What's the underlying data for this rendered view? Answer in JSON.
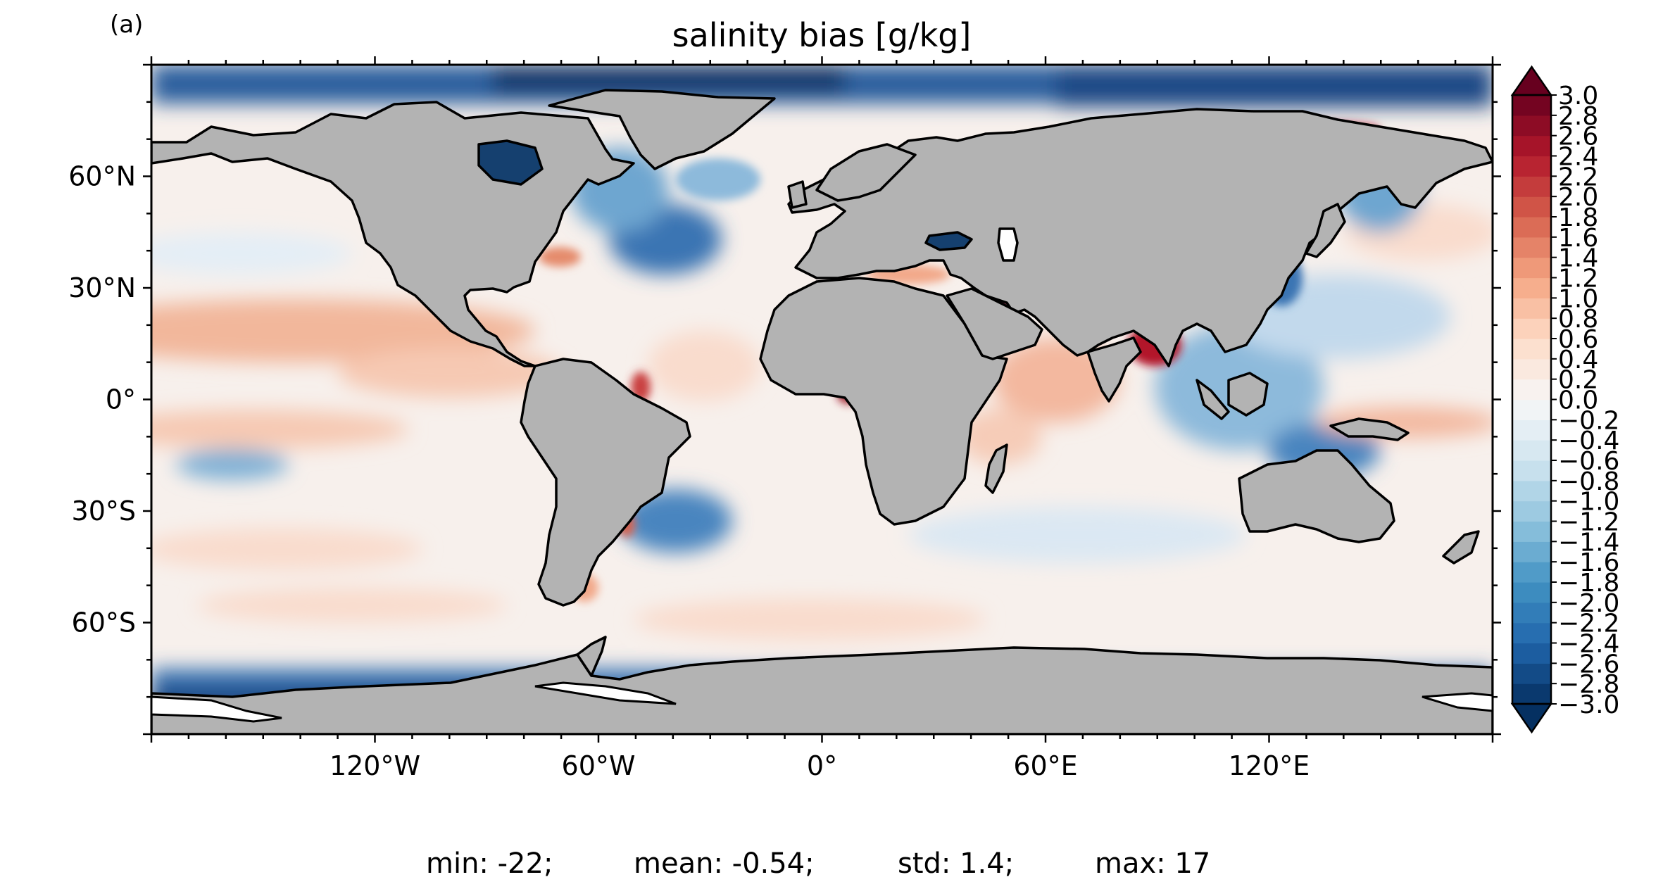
{
  "panel_label": "(a)",
  "title": "salinity bias [g/kg]",
  "stats": {
    "min": "min: -22;",
    "mean": "mean: -0.54;",
    "std": "std: 1.4;",
    "max": "max: 17"
  },
  "chart_data": {
    "type": "heatmap",
    "projection": "plate carree (equirectangular)",
    "title": "salinity bias [g/kg]",
    "xlim": [
      -180,
      180
    ],
    "ylim": [
      -90,
      90
    ],
    "x_ticks": [
      {
        "value": -120,
        "label": "120°W"
      },
      {
        "value": -60,
        "label": "60°W"
      },
      {
        "value": 0,
        "label": "0°"
      },
      {
        "value": 60,
        "label": "60°E"
      },
      {
        "value": 120,
        "label": "120°E"
      }
    ],
    "y_ticks": [
      {
        "value": 60,
        "label": "60°N"
      },
      {
        "value": 30,
        "label": "30°N"
      },
      {
        "value": 0,
        "label": "0°"
      },
      {
        "value": -30,
        "label": "30°S"
      },
      {
        "value": -60,
        "label": "60°S"
      }
    ],
    "land_color": "#b3b3b3",
    "coastline_color": "#000000",
    "colorbar": {
      "colormap": "RdBu_r",
      "vmin": -3.0,
      "vmax": 3.0,
      "step": 0.2,
      "extend": "both",
      "tick_labels": [
        "3.0",
        "2.8",
        "2.6",
        "2.4",
        "2.2",
        "2.0",
        "1.8",
        "1.6",
        "1.4",
        "1.2",
        "1.0",
        "0.8",
        "0.6",
        "0.4",
        "0.2",
        "0.0",
        "−0.2",
        "−0.4",
        "−0.6",
        "−0.8",
        "−1.0",
        "−1.2",
        "−1.4",
        "−1.6",
        "−1.8",
        "−2.0",
        "−2.2",
        "−2.4",
        "−2.6",
        "−2.8",
        "−3.0"
      ]
    },
    "stats": {
      "min": -22,
      "mean": -0.54,
      "std": 1.4,
      "max": 17
    }
  }
}
